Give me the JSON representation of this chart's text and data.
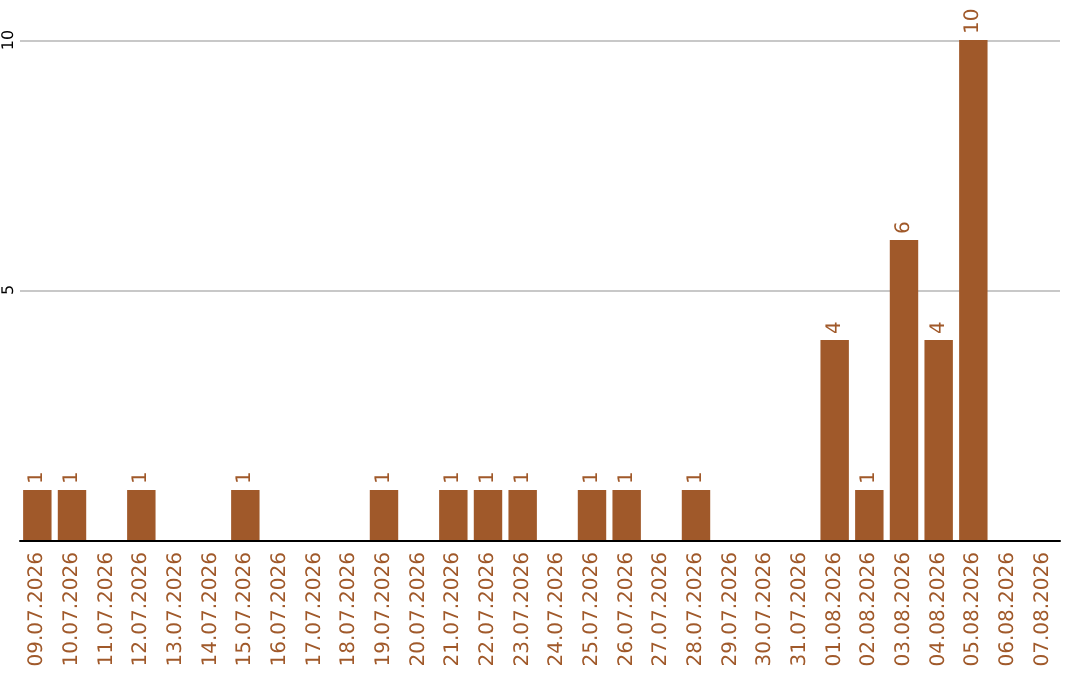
{
  "chart_data": {
    "type": "bar",
    "categories": [
      "09.07.2026",
      "10.07.2026",
      "11.07.2026",
      "12.07.2026",
      "13.07.2026",
      "14.07.2026",
      "15.07.2026",
      "16.07.2026",
      "17.07.2026",
      "18.07.2026",
      "19.07.2026",
      "20.07.2026",
      "21.07.2026",
      "22.07.2026",
      "23.07.2026",
      "24.07.2026",
      "25.07.2026",
      "26.07.2026",
      "27.07.2026",
      "28.07.2026",
      "29.07.2026",
      "30.07.2026",
      "31.07.2026",
      "01.08.2026",
      "02.08.2026",
      "03.08.2026",
      "04.08.2026",
      "05.08.2026",
      "06.08.2026",
      "07.08.2026"
    ],
    "values": [
      1,
      1,
      0,
      1,
      0,
      0,
      1,
      0,
      0,
      0,
      1,
      0,
      1,
      1,
      1,
      0,
      1,
      1,
      0,
      1,
      0,
      0,
      0,
      4,
      1,
      6,
      4,
      10,
      0,
      0
    ],
    "value_labels": [
      "1",
      "1",
      null,
      "1",
      null,
      null,
      "1",
      null,
      null,
      null,
      "1",
      null,
      "1",
      "1",
      "1",
      null,
      "1",
      "1",
      null,
      "1",
      null,
      null,
      null,
      "4",
      "1",
      "6",
      "4",
      "10",
      null,
      null
    ],
    "color": "#a0592a",
    "ylim": [
      0,
      10
    ],
    "yticks": [
      {
        "value": 0,
        "label": null
      },
      5,
      10
    ],
    "grid": "y"
  }
}
